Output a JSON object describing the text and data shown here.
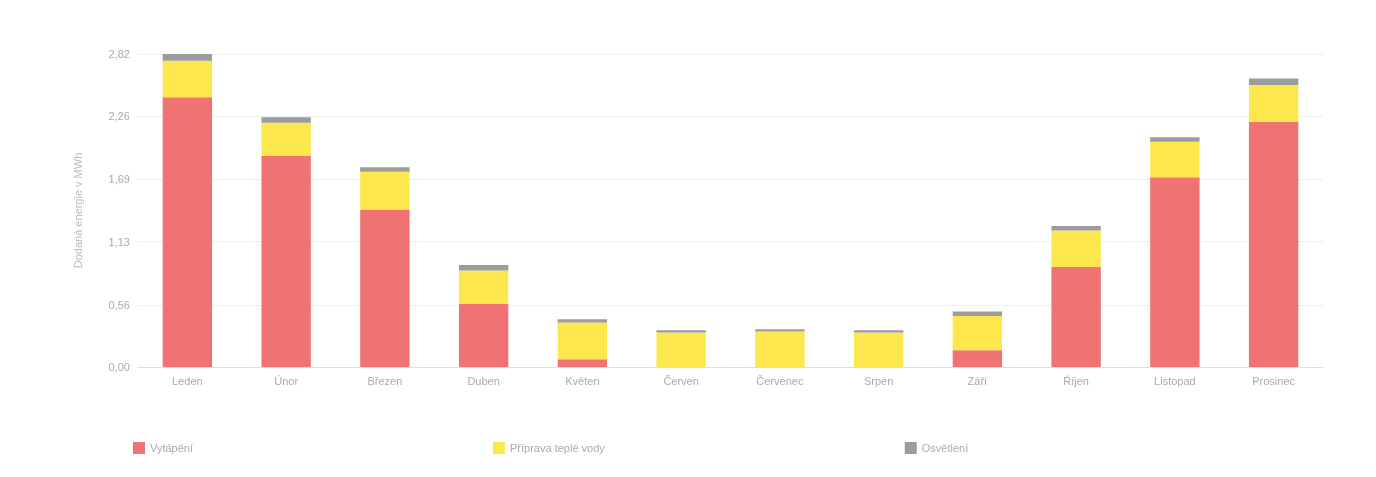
{
  "chart_data": {
    "type": "bar",
    "stacked": true,
    "ylabel": "Dodaná energie v MWh",
    "categories": [
      "Leden",
      "Únor",
      "Březen",
      "Duben",
      "Květen",
      "Červen",
      "Červenec",
      "Srpen",
      "Září",
      "Říjen",
      "Listopad",
      "Prosinec"
    ],
    "series": [
      {
        "name": "Vytápění",
        "color": "#f07373",
        "values": [
          2.43,
          1.9,
          1.42,
          0.57,
          0.07,
          0,
          0,
          0,
          0.15,
          0.9,
          1.71,
          2.21
        ]
      },
      {
        "name": "Příprava teplé vody",
        "color": "#fce84c",
        "values": [
          0.33,
          0.3,
          0.34,
          0.3,
          0.33,
          0.31,
          0.32,
          0.31,
          0.31,
          0.33,
          0.32,
          0.33
        ]
      },
      {
        "name": "Osvětlení",
        "color": "#9c9c9c",
        "values": [
          0.06,
          0.05,
          0.04,
          0.05,
          0.03,
          0.02,
          0.02,
          0.02,
          0.04,
          0.04,
          0.04,
          0.06
        ]
      }
    ],
    "ylim": [
      0,
      2.82
    ],
    "yticks": [
      {
        "value": 0,
        "label": "0,00"
      },
      {
        "value": 0.56,
        "label": "0,56"
      },
      {
        "value": 1.13,
        "label": "1,13"
      },
      {
        "value": 1.69,
        "label": "1,69"
      },
      {
        "value": 2.26,
        "label": "2,26"
      },
      {
        "value": 2.82,
        "label": "2,82"
      }
    ],
    "grid": "y",
    "legend": "bottom"
  }
}
